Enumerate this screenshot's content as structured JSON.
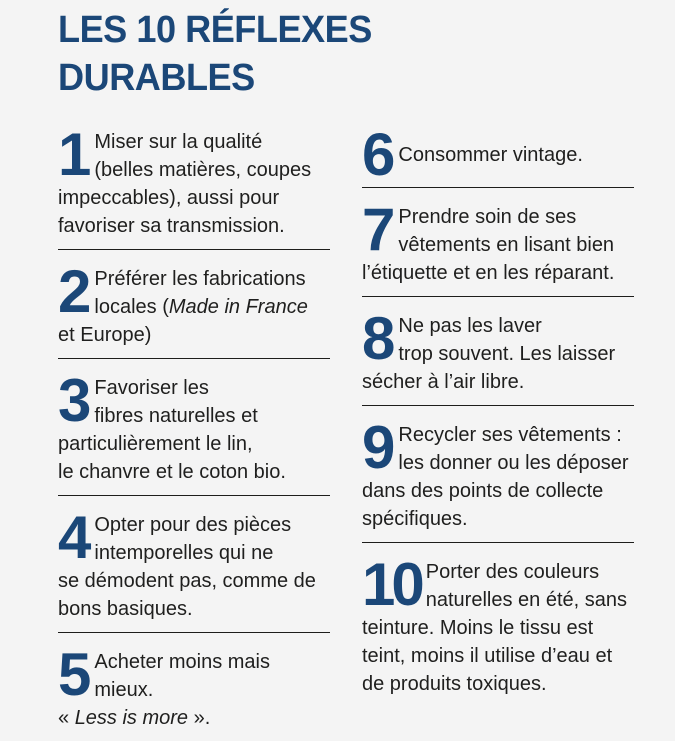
{
  "page": {
    "title_line1": "LES 10 RÉFLEXES",
    "title_line2": "DURABLES",
    "colors": {
      "background": "#f4f4f4",
      "accent_navy": "#1b4778",
      "body_text": "#1f1f1e",
      "divider": "#1d1d1b"
    }
  },
  "items": [
    {
      "number": "1",
      "segments": [
        {
          "text": "Miser sur la qualité\n(belles matières, coupes\nimpeccables), aussi pour\nfavoriser sa transmission.",
          "italic": false
        }
      ]
    },
    {
      "number": "2",
      "segments": [
        {
          "text": "Préférer les fabrications\nlocales (",
          "italic": false
        },
        {
          "text": "Made in France",
          "italic": true
        },
        {
          "text": "\net Europe)",
          "italic": false
        }
      ]
    },
    {
      "number": "3",
      "segments": [
        {
          "text": "Favoriser les\nfibres naturelles et\nparticulièrement le lin,\nle chanvre et le coton bio.",
          "italic": false
        }
      ]
    },
    {
      "number": "4",
      "segments": [
        {
          "text": "Opter pour des pièces\nintemporelles qui ne\nse démodent pas, comme de\nbons basiques.",
          "italic": false
        }
      ]
    },
    {
      "number": "5",
      "segments": [
        {
          "text": "Acheter moins mais mieux.\n« ",
          "italic": false
        },
        {
          "text": "Less is more",
          "italic": true
        },
        {
          "text": " ».",
          "italic": false
        }
      ]
    },
    {
      "number": "6",
      "segments": [
        {
          "text": "Consommer vintage.",
          "italic": false
        }
      ]
    },
    {
      "number": "7",
      "segments": [
        {
          "text": "Prendre soin de ses\nvêtements en lisant bien\nl’étiquette et en les réparant.",
          "italic": false
        }
      ]
    },
    {
      "number": "8",
      "segments": [
        {
          "text": "Ne pas les laver\ntrop souvent. Les laisser\nsécher à l’air libre.",
          "italic": false
        }
      ]
    },
    {
      "number": "9",
      "segments": [
        {
          "text": "Recycler ses vêtements :\nles donner ou les déposer\ndans des points de collecte\nspécifiques.",
          "italic": false
        }
      ]
    },
    {
      "number": "10",
      "segments": [
        {
          "text": "Porter des couleurs\nnaturelles en été, sans\nteinture. Moins le tissu est\nteint, moins il utilise d’eau et\nde produits toxiques.",
          "italic": false
        }
      ]
    }
  ]
}
